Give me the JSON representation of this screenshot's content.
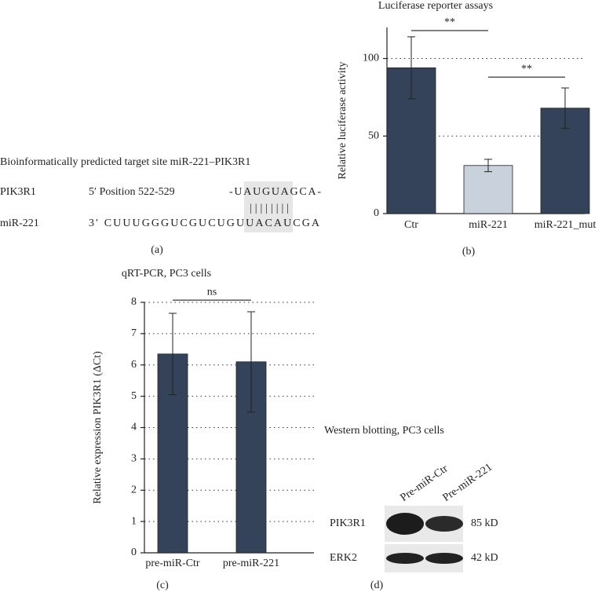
{
  "chart_data": [
    {
      "type": "bar",
      "title": "Luciferase reporter assays",
      "ylabel": "Relative luciferase activity",
      "categories": [
        "Ctr",
        "miR-221",
        "miR-221_mut"
      ],
      "values": [
        94,
        31,
        68
      ],
      "errors": [
        20,
        4,
        13
      ],
      "colors": [
        "#34435a",
        "#c8d1dc",
        "#34435a"
      ],
      "ylim": [
        0,
        120
      ],
      "yticks": [
        0,
        50,
        100
      ],
      "grid": true,
      "annotations": [
        {
          "text": "**",
          "pair": [
            0,
            1
          ],
          "y": 118
        },
        {
          "text": "**",
          "pair": [
            1,
            2
          ],
          "y": 88
        }
      ],
      "panel_label": "(b)"
    },
    {
      "type": "bar",
      "title": "qRT-PCR, PC3 cells",
      "ylabel": "Relative expression PIK3R1 (ΔCt)",
      "categories": [
        "pre-miR-Ctr",
        "pre-miR-221"
      ],
      "values": [
        6.35,
        6.1
      ],
      "errors": [
        1.3,
        1.6
      ],
      "colors": [
        "#34435a",
        "#34435a"
      ],
      "ylim": [
        0,
        8
      ],
      "yticks": [
        0,
        1,
        2,
        3,
        4,
        5,
        6,
        7,
        8
      ],
      "grid": true,
      "annotations": [
        {
          "text": "ns",
          "pair": [
            0,
            1
          ],
          "y": 8.07
        }
      ],
      "panel_label": "(c)"
    }
  ],
  "panel_a": {
    "title": "Bioinformatically predicted target site miR-221–PIK3R1",
    "target_name": "PIK3R1",
    "target_position": "5′ Position 522-529",
    "target_sequence": "-UAUGUAGCA-",
    "pairing": "||||||||",
    "mirna_name": "miR-221",
    "mirna_sequence": "3′ CUUUGGGUCGUCUGUUACAUCGA",
    "label": "(a)"
  },
  "panel_d": {
    "title": "Western blotting, PC3 cells",
    "lanes": [
      "Pre-miR-Ctr",
      "Pre-miR-221"
    ],
    "rows": [
      {
        "protein": "PIK3R1",
        "size": "85 kD"
      },
      {
        "protein": "ERK2",
        "size": "42 kD"
      }
    ],
    "label": "(d)"
  }
}
